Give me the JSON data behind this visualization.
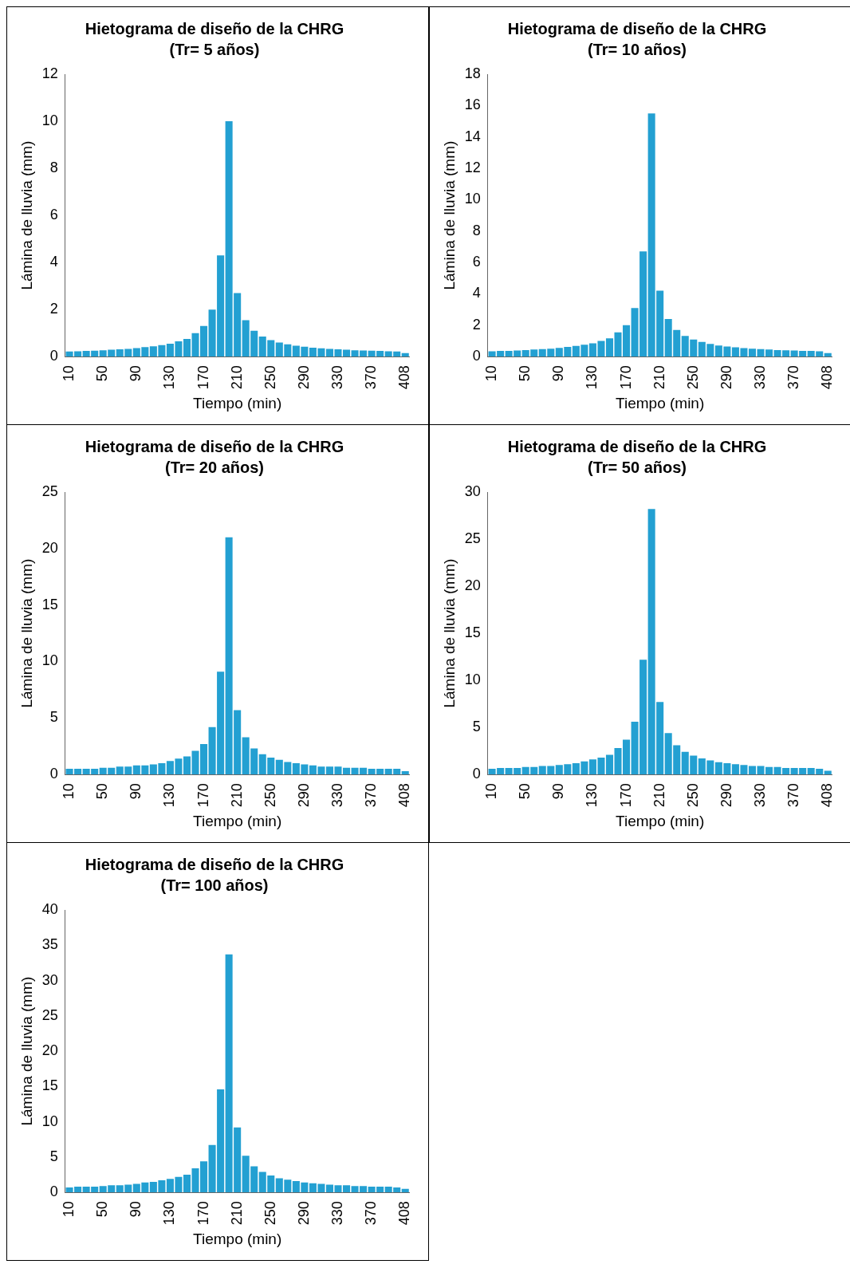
{
  "chart_data": [
    {
      "type": "bar",
      "title": "Hietograma de diseño de la CHRG",
      "subtitle": "(Tr= 5 años)",
      "xlabel": "Tiempo (min)",
      "ylabel": "Lámina de lluvia (mm)",
      "color": "#23a0d2",
      "categories": [
        "10",
        null,
        null,
        null,
        "50",
        null,
        null,
        null,
        "90",
        null,
        null,
        null,
        "130",
        null,
        null,
        null,
        "170",
        null,
        null,
        null,
        "210",
        null,
        null,
        null,
        "250",
        null,
        null,
        null,
        "290",
        null,
        null,
        null,
        "330",
        null,
        null,
        null,
        "370",
        null,
        null,
        null,
        "408"
      ],
      "values": [
        0.22,
        0.23,
        0.24,
        0.25,
        0.27,
        0.29,
        0.31,
        0.33,
        0.36,
        0.4,
        0.44,
        0.49,
        0.55,
        0.65,
        0.75,
        1.0,
        1.3,
        2.0,
        4.3,
        10.0,
        2.7,
        1.55,
        1.1,
        0.85,
        0.7,
        0.6,
        0.52,
        0.46,
        0.42,
        0.38,
        0.35,
        0.33,
        0.31,
        0.29,
        0.27,
        0.26,
        0.25,
        0.24,
        0.23,
        0.22,
        0.15
      ],
      "ylim": [
        0,
        12
      ],
      "yticks": [
        0,
        2,
        4,
        6,
        8,
        10,
        12
      ]
    },
    {
      "type": "bar",
      "title": "Hietograma de diseño de la CHRG",
      "subtitle": "(Tr= 10 años)",
      "xlabel": "Tiempo (min)",
      "ylabel": "Lámina de lluvia (mm)",
      "color": "#23a0d2",
      "categories": [
        "10",
        null,
        null,
        null,
        "50",
        null,
        null,
        null,
        "90",
        null,
        null,
        null,
        "130",
        null,
        null,
        null,
        "170",
        null,
        null,
        null,
        "210",
        null,
        null,
        null,
        "250",
        null,
        null,
        null,
        "290",
        null,
        null,
        null,
        "330",
        null,
        null,
        null,
        "370",
        null,
        null,
        null,
        "408"
      ],
      "values": [
        0.34,
        0.36,
        0.37,
        0.39,
        0.42,
        0.45,
        0.48,
        0.51,
        0.56,
        0.62,
        0.68,
        0.76,
        0.85,
        1.0,
        1.16,
        1.55,
        2.0,
        3.1,
        6.7,
        15.5,
        4.2,
        2.4,
        1.7,
        1.32,
        1.09,
        0.93,
        0.81,
        0.71,
        0.65,
        0.59,
        0.54,
        0.51,
        0.48,
        0.45,
        0.42,
        0.4,
        0.39,
        0.37,
        0.36,
        0.34,
        0.23
      ],
      "ylim": [
        0,
        18
      ],
      "yticks": [
        0,
        2,
        4,
        6,
        8,
        10,
        12,
        14,
        16,
        18
      ]
    },
    {
      "type": "bar",
      "title": "Hietograma de diseño de la CHRG",
      "subtitle": "(Tr= 20 años)",
      "xlabel": "Tiempo (min)",
      "ylabel": "Lámina de lluvia (mm)",
      "color": "#23a0d2",
      "categories": [
        "10",
        null,
        null,
        null,
        "50",
        null,
        null,
        null,
        "90",
        null,
        null,
        null,
        "130",
        null,
        null,
        null,
        "170",
        null,
        null,
        null,
        "210",
        null,
        null,
        null,
        "250",
        null,
        null,
        null,
        "290",
        null,
        null,
        null,
        "330",
        null,
        null,
        null,
        "370",
        null,
        null,
        null,
        "408"
      ],
      "values": [
        0.5,
        0.5,
        0.5,
        0.5,
        0.6,
        0.6,
        0.7,
        0.7,
        0.8,
        0.8,
        0.9,
        1.0,
        1.2,
        1.4,
        1.6,
        2.1,
        2.7,
        4.2,
        9.1,
        21.0,
        5.7,
        3.3,
        2.3,
        1.8,
        1.5,
        1.3,
        1.1,
        1.0,
        0.9,
        0.8,
        0.7,
        0.7,
        0.7,
        0.6,
        0.6,
        0.6,
        0.5,
        0.5,
        0.5,
        0.5,
        0.3
      ],
      "ylim": [
        0,
        25
      ],
      "yticks": [
        0,
        5,
        10,
        15,
        20,
        25
      ]
    },
    {
      "type": "bar",
      "title": "Hietograma de diseño de la CHRG",
      "subtitle": "(Tr= 50 años)",
      "xlabel": "Tiempo (min)",
      "ylabel": "Lámina de lluvia (mm)",
      "color": "#23a0d2",
      "categories": [
        "10",
        null,
        null,
        null,
        "50",
        null,
        null,
        null,
        "90",
        null,
        null,
        null,
        "130",
        null,
        null,
        null,
        "170",
        null,
        null,
        null,
        "210",
        null,
        null,
        null,
        "250",
        null,
        null,
        null,
        "290",
        null,
        null,
        null,
        "330",
        null,
        null,
        null,
        "370",
        null,
        null,
        null,
        "408"
      ],
      "values": [
        0.6,
        0.7,
        0.7,
        0.7,
        0.8,
        0.8,
        0.9,
        0.9,
        1.0,
        1.1,
        1.2,
        1.4,
        1.6,
        1.8,
        2.1,
        2.8,
        3.7,
        5.6,
        12.2,
        28.2,
        7.7,
        4.4,
        3.1,
        2.4,
        2.0,
        1.7,
        1.5,
        1.3,
        1.2,
        1.1,
        1.0,
        0.9,
        0.9,
        0.8,
        0.8,
        0.7,
        0.7,
        0.7,
        0.7,
        0.6,
        0.4
      ],
      "ylim": [
        0,
        30
      ],
      "yticks": [
        0,
        5,
        10,
        15,
        20,
        25,
        30
      ]
    },
    {
      "type": "bar",
      "title": "Hietograma de diseño de la CHRG",
      "subtitle": "(Tr= 100 años)",
      "xlabel": "Tiempo (min)",
      "ylabel": "Lámina de lluvia (mm)",
      "color": "#23a0d2",
      "categories": [
        "10",
        null,
        null,
        null,
        "50",
        null,
        null,
        null,
        "90",
        null,
        null,
        null,
        "130",
        null,
        null,
        null,
        "170",
        null,
        null,
        null,
        "210",
        null,
        null,
        null,
        "250",
        null,
        null,
        null,
        "290",
        null,
        null,
        null,
        "330",
        null,
        null,
        null,
        "370",
        null,
        null,
        null,
        "408"
      ],
      "values": [
        0.7,
        0.8,
        0.8,
        0.8,
        0.9,
        1.0,
        1.0,
        1.1,
        1.2,
        1.4,
        1.5,
        1.7,
        1.9,
        2.2,
        2.5,
        3.4,
        4.4,
        6.7,
        14.6,
        33.7,
        9.2,
        5.2,
        3.7,
        2.9,
        2.4,
        2.0,
        1.8,
        1.6,
        1.4,
        1.3,
        1.2,
        1.1,
        1.0,
        1.0,
        0.9,
        0.9,
        0.8,
        0.8,
        0.8,
        0.7,
        0.5
      ],
      "ylim": [
        0,
        40
      ],
      "yticks": [
        0,
        5,
        10,
        15,
        20,
        25,
        30,
        35,
        40
      ]
    }
  ]
}
